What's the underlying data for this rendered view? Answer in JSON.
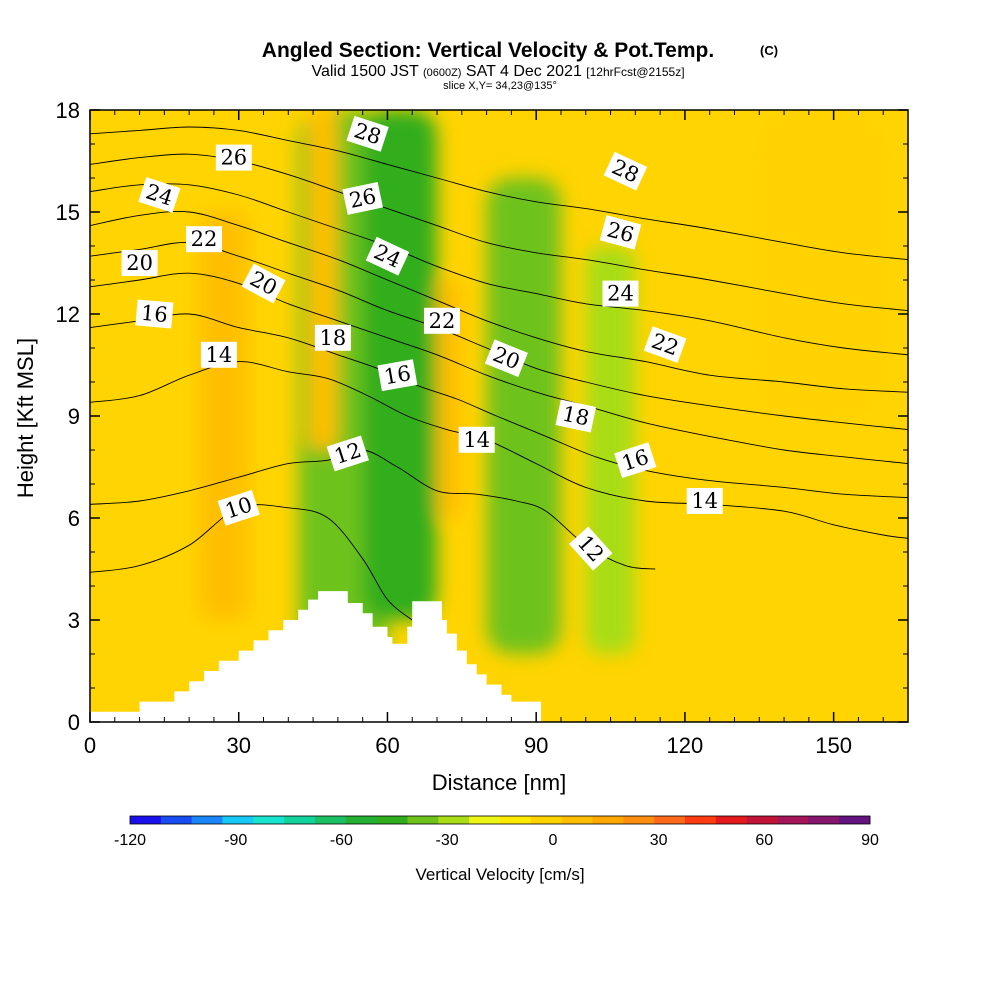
{
  "chart_data": {
    "type": "heatmap",
    "title": "Angled Section: Vertical Velocity & Pot.Temp.",
    "title_unit": "(C)",
    "subtitle_main": "Valid 1500 JST",
    "subtitle_z": "(0600Z)",
    "subtitle_date": "SAT 4 Dec 2021",
    "subtitle_fcst": "[12hrFcst@2155z]",
    "slice_info": "slice X,Y= 34,23@135°",
    "xlabel": "Distance [nm]",
    "ylabel": "Height [Kft MSL]",
    "xlim": [
      0,
      165
    ],
    "ylim": [
      0,
      18
    ],
    "x_ticks": [
      0,
      30,
      60,
      90,
      120,
      150
    ],
    "y_ticks": [
      0,
      3,
      6,
      9,
      12,
      15,
      18
    ],
    "grid": false,
    "legend": "colorbar-bottom",
    "colorbar": {
      "label": "Vertical Velocity [cm/s]",
      "min": -120,
      "max": 90,
      "step": 10,
      "tick_values": [
        -120,
        -90,
        -60,
        -30,
        0,
        30,
        60,
        90
      ],
      "colors": [
        "#1a10ee",
        "#1a4cf4",
        "#1a86f7",
        "#16c8f5",
        "#17e3cf",
        "#12d39a",
        "#1cc064",
        "#23b035",
        "#30ad1e",
        "#6ec21b",
        "#a8dd18",
        "#ecf515",
        "#ffea00",
        "#ffd200",
        "#ffbf00",
        "#ffa800",
        "#ff8e10",
        "#ff6a1a",
        "#ff3b12",
        "#e51a1f",
        "#c21338",
        "#a5155a",
        "#86166e",
        "#631480"
      ]
    },
    "terrain": [
      [
        0,
        0.3
      ],
      [
        10,
        0.3
      ],
      [
        10,
        0.6
      ],
      [
        17,
        0.6
      ],
      [
        17,
        0.9
      ],
      [
        20,
        0.9
      ],
      [
        20,
        1.2
      ],
      [
        23,
        1.2
      ],
      [
        23,
        1.5
      ],
      [
        26,
        1.5
      ],
      [
        26,
        1.8
      ],
      [
        30,
        1.8
      ],
      [
        30,
        2.1
      ],
      [
        33,
        2.1
      ],
      [
        33,
        2.4
      ],
      [
        36,
        2.4
      ],
      [
        36,
        2.7
      ],
      [
        39,
        2.7
      ],
      [
        39,
        3.0
      ],
      [
        42,
        3.0
      ],
      [
        42,
        3.3
      ],
      [
        44,
        3.3
      ],
      [
        44,
        3.6
      ],
      [
        46,
        3.6
      ],
      [
        46,
        3.85
      ],
      [
        52,
        3.85
      ],
      [
        52,
        3.5
      ],
      [
        55,
        3.5
      ],
      [
        55,
        3.2
      ],
      [
        57,
        3.2
      ],
      [
        57,
        2.8
      ],
      [
        60,
        2.8
      ],
      [
        60,
        2.5
      ],
      [
        61,
        2.5
      ],
      [
        61,
        2.3
      ],
      [
        64,
        2.3
      ],
      [
        64,
        2.8
      ],
      [
        65,
        2.8
      ],
      [
        65,
        3.55
      ],
      [
        71,
        3.55
      ],
      [
        71,
        3.0
      ],
      [
        72,
        3.0
      ],
      [
        72,
        2.6
      ],
      [
        74,
        2.6
      ],
      [
        74,
        2.1
      ],
      [
        76,
        2.1
      ],
      [
        76,
        1.7
      ],
      [
        78,
        1.7
      ],
      [
        78,
        1.4
      ],
      [
        80,
        1.4
      ],
      [
        80,
        1.1
      ],
      [
        83,
        1.1
      ],
      [
        83,
        0.8
      ],
      [
        85,
        0.8
      ],
      [
        85,
        0.6
      ],
      [
        91,
        0.6
      ],
      [
        91,
        0
      ]
    ],
    "theta_contours": [
      {
        "value": 10,
        "points": [
          [
            0,
            4.4
          ],
          [
            10,
            4.6
          ],
          [
            20,
            5.2
          ],
          [
            30,
            6.3
          ],
          [
            40,
            6.3
          ],
          [
            48,
            6.0
          ],
          [
            55,
            4.8
          ],
          [
            60,
            3.6
          ],
          [
            65,
            3.0
          ]
        ]
      },
      {
        "value": 12,
        "points": [
          [
            0,
            6.4
          ],
          [
            10,
            6.5
          ],
          [
            20,
            6.8
          ],
          [
            30,
            7.2
          ],
          [
            40,
            7.6
          ],
          [
            48,
            7.7
          ],
          [
            55,
            8.0
          ],
          [
            62,
            7.5
          ],
          [
            70,
            6.8
          ],
          [
            78,
            6.7
          ],
          [
            86,
            6.5
          ],
          [
            92,
            6.2
          ],
          [
            100,
            5.2
          ],
          [
            108,
            4.6
          ],
          [
            114,
            4.5
          ]
        ]
      },
      {
        "value": 14,
        "points": [
          [
            0,
            9.4
          ],
          [
            10,
            9.6
          ],
          [
            20,
            10.2
          ],
          [
            30,
            10.6
          ],
          [
            40,
            10.3
          ],
          [
            48,
            10.1
          ],
          [
            56,
            9.6
          ],
          [
            64,
            9.0
          ],
          [
            72,
            8.6
          ],
          [
            80,
            8.3
          ],
          [
            90,
            7.6
          ],
          [
            100,
            6.9
          ],
          [
            112,
            6.5
          ],
          [
            125,
            6.4
          ],
          [
            140,
            6.2
          ],
          [
            150,
            5.8
          ],
          [
            160,
            5.5
          ],
          [
            165,
            5.4
          ]
        ]
      },
      {
        "value": 16,
        "points": [
          [
            0,
            11.6
          ],
          [
            10,
            11.8
          ],
          [
            20,
            12.0
          ],
          [
            30,
            11.6
          ],
          [
            40,
            11.3
          ],
          [
            50,
            10.8
          ],
          [
            58,
            10.4
          ],
          [
            66,
            9.9
          ],
          [
            74,
            9.5
          ],
          [
            82,
            9.0
          ],
          [
            92,
            8.4
          ],
          [
            102,
            7.8
          ],
          [
            112,
            7.4
          ],
          [
            125,
            7.1
          ],
          [
            140,
            6.9
          ],
          [
            152,
            6.7
          ],
          [
            165,
            6.6
          ]
        ]
      },
      {
        "value": 18,
        "points": [
          [
            0,
            12.8
          ],
          [
            10,
            13.0
          ],
          [
            20,
            13.2
          ],
          [
            30,
            12.9
          ],
          [
            40,
            12.3
          ],
          [
            50,
            11.8
          ],
          [
            60,
            11.3
          ],
          [
            70,
            10.8
          ],
          [
            80,
            10.2
          ],
          [
            90,
            9.7
          ],
          [
            100,
            9.3
          ],
          [
            112,
            8.8
          ],
          [
            125,
            8.4
          ],
          [
            140,
            8.0
          ],
          [
            152,
            7.8
          ],
          [
            165,
            7.6
          ]
        ]
      },
      {
        "value": 20,
        "points": [
          [
            0,
            13.7
          ],
          [
            10,
            13.9
          ],
          [
            20,
            14.1
          ],
          [
            30,
            13.7
          ],
          [
            40,
            13.2
          ],
          [
            50,
            12.7
          ],
          [
            60,
            12.1
          ],
          [
            70,
            11.6
          ],
          [
            80,
            11.0
          ],
          [
            90,
            10.4
          ],
          [
            100,
            10.0
          ],
          [
            112,
            9.6
          ],
          [
            125,
            9.3
          ],
          [
            140,
            9.0
          ],
          [
            152,
            8.8
          ],
          [
            165,
            8.6
          ]
        ]
      },
      {
        "value": 22,
        "points": [
          [
            0,
            14.6
          ],
          [
            10,
            14.9
          ],
          [
            20,
            15.0
          ],
          [
            30,
            14.6
          ],
          [
            40,
            14.1
          ],
          [
            50,
            13.6
          ],
          [
            60,
            13.0
          ],
          [
            70,
            12.4
          ],
          [
            80,
            11.8
          ],
          [
            90,
            11.3
          ],
          [
            100,
            10.9
          ],
          [
            112,
            10.6
          ],
          [
            125,
            10.2
          ],
          [
            140,
            10.0
          ],
          [
            152,
            9.8
          ],
          [
            165,
            9.7
          ]
        ]
      },
      {
        "value": 24,
        "points": [
          [
            0,
            15.6
          ],
          [
            10,
            15.8
          ],
          [
            20,
            15.8
          ],
          [
            30,
            15.5
          ],
          [
            40,
            15.0
          ],
          [
            50,
            14.5
          ],
          [
            60,
            14.0
          ],
          [
            70,
            13.4
          ],
          [
            80,
            12.9
          ],
          [
            90,
            12.6
          ],
          [
            100,
            12.3
          ],
          [
            112,
            12.1
          ],
          [
            125,
            11.8
          ],
          [
            140,
            11.3
          ],
          [
            152,
            11.0
          ],
          [
            165,
            10.8
          ]
        ]
      },
      {
        "value": 26,
        "points": [
          [
            0,
            16.4
          ],
          [
            10,
            16.6
          ],
          [
            20,
            16.7
          ],
          [
            30,
            16.5
          ],
          [
            40,
            16.1
          ],
          [
            50,
            15.6
          ],
          [
            60,
            15.1
          ],
          [
            70,
            14.6
          ],
          [
            80,
            14.1
          ],
          [
            90,
            13.8
          ],
          [
            100,
            13.6
          ],
          [
            112,
            13.3
          ],
          [
            125,
            13.0
          ],
          [
            140,
            12.6
          ],
          [
            152,
            12.3
          ],
          [
            165,
            12.1
          ]
        ]
      },
      {
        "value": 28,
        "points": [
          [
            0,
            17.3
          ],
          [
            10,
            17.4
          ],
          [
            20,
            17.5
          ],
          [
            30,
            17.4
          ],
          [
            40,
            17.1
          ],
          [
            50,
            16.8
          ],
          [
            60,
            16.4
          ],
          [
            70,
            16.0
          ],
          [
            80,
            15.6
          ],
          [
            90,
            15.3
          ],
          [
            100,
            15.1
          ],
          [
            112,
            14.8
          ],
          [
            125,
            14.5
          ],
          [
            140,
            14.1
          ],
          [
            152,
            13.8
          ],
          [
            165,
            13.6
          ]
        ]
      }
    ],
    "contour_labels": [
      {
        "text": "10",
        "x": 30,
        "y": 6.3,
        "angle": -18
      },
      {
        "text": "12",
        "x": 52,
        "y": 7.9,
        "angle": -18
      },
      {
        "text": "12",
        "x": 101,
        "y": 5.1,
        "angle": 48
      },
      {
        "text": "14",
        "x": 26,
        "y": 10.8,
        "angle": 0
      },
      {
        "text": "14",
        "x": 78,
        "y": 8.3,
        "angle": 0
      },
      {
        "text": "14",
        "x": 124,
        "y": 6.5,
        "angle": 0
      },
      {
        "text": "16",
        "x": 13,
        "y": 12.0,
        "angle": 5
      },
      {
        "text": "16",
        "x": 62,
        "y": 10.2,
        "angle": -10
      },
      {
        "text": "16",
        "x": 110,
        "y": 7.7,
        "angle": -18
      },
      {
        "text": "18",
        "x": 49,
        "y": 11.3,
        "angle": 0
      },
      {
        "text": "18",
        "x": 98,
        "y": 9.0,
        "angle": 12
      },
      {
        "text": "20",
        "x": 10,
        "y": 13.5,
        "angle": 0
      },
      {
        "text": "20",
        "x": 35,
        "y": 12.9,
        "angle": 28
      },
      {
        "text": "20",
        "x": 84,
        "y": 10.7,
        "angle": 22
      },
      {
        "text": "22",
        "x": 23,
        "y": 14.2,
        "angle": 0
      },
      {
        "text": "22",
        "x": 71,
        "y": 11.8,
        "angle": 0
      },
      {
        "text": "22",
        "x": 116,
        "y": 11.1,
        "angle": 20
      },
      {
        "text": "24",
        "x": 14,
        "y": 15.5,
        "angle": 18
      },
      {
        "text": "24",
        "x": 60,
        "y": 13.7,
        "angle": 25
      },
      {
        "text": "24",
        "x": 107,
        "y": 12.6,
        "angle": 0
      },
      {
        "text": "26",
        "x": 29,
        "y": 16.6,
        "angle": 0
      },
      {
        "text": "26",
        "x": 55,
        "y": 15.4,
        "angle": -12
      },
      {
        "text": "26",
        "x": 107,
        "y": 14.4,
        "angle": 15
      },
      {
        "text": "28",
        "x": 56,
        "y": 17.3,
        "angle": 18
      },
      {
        "text": "28",
        "x": 108,
        "y": 16.2,
        "angle": 25
      }
    ],
    "velocity_field_bands": [
      {
        "name": "descent",
        "x": [
          42,
          60
        ],
        "y": [
          0,
          18
        ],
        "value": -25
      },
      {
        "name": "descent",
        "x": [
          55,
          70
        ],
        "y": [
          3,
          18
        ],
        "value": -35
      },
      {
        "name": "descent",
        "x": [
          80,
          95
        ],
        "y": [
          2,
          16
        ],
        "value": -25
      },
      {
        "name": "descent",
        "x": [
          100,
          110
        ],
        "y": [
          2,
          14
        ],
        "value": -20
      },
      {
        "name": "ascent",
        "x": [
          22,
          32
        ],
        "y": [
          3,
          15
        ],
        "value": 25
      },
      {
        "name": "ascent",
        "x": [
          44,
          50
        ],
        "y": [
          8,
          18
        ],
        "value": 22
      },
      {
        "name": "ascent",
        "x": [
          70,
          75
        ],
        "y": [
          6,
          13
        ],
        "value": 20
      },
      {
        "name": "ascent",
        "x": [
          135,
          160
        ],
        "y": [
          9,
          18
        ],
        "value": 18
      }
    ]
  }
}
